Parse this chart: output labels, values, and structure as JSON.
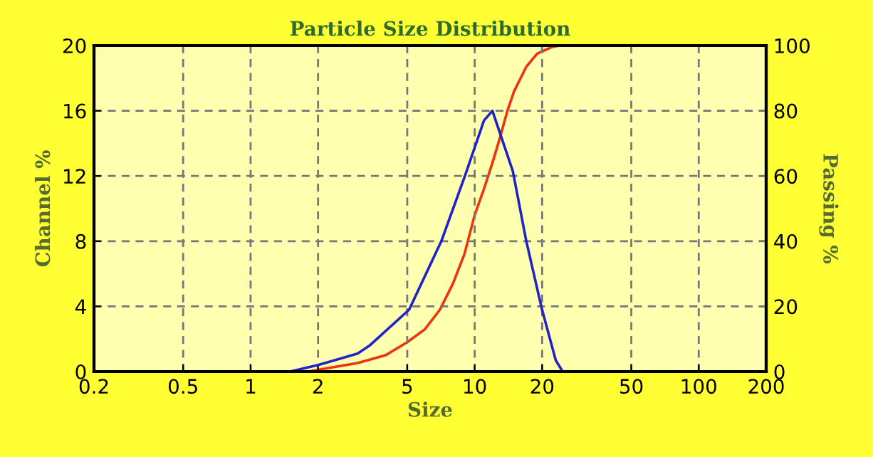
{
  "chart_data": {
    "type": "line",
    "title": "Particle Size Distribution",
    "xlabel": "Size",
    "ylabel": "Channel %",
    "y2label": "Passing %",
    "log": "x",
    "grid": true,
    "marker": "none",
    "line_style": "solid",
    "xlim": [
      0.2,
      200
    ],
    "xticks": [
      0.2,
      0.5,
      1,
      2,
      5,
      10,
      20,
      50,
      100,
      200
    ],
    "ylim": [
      0,
      20
    ],
    "yticks": [
      0,
      4,
      8,
      12,
      16,
      20
    ],
    "y2lim": [
      0,
      100
    ],
    "y2ticks": [
      0,
      20,
      40,
      60,
      80,
      100
    ],
    "series": [
      {
        "color": "#2222cc",
        "x": [
          0.2,
          1.5,
          2,
          3,
          3.4,
          5.1,
          7.1,
          9.1,
          11,
          12,
          14.8,
          17,
          19.9,
          23,
          24.7,
          200
        ],
        "values": [
          0,
          0,
          0.4,
          1.1,
          1.6,
          3.8,
          8,
          12.1,
          15.4,
          16,
          12.3,
          8,
          3.9,
          0.7,
          0,
          0
        ]
      },
      {
        "color": "#ee3311",
        "axis": "y2",
        "x": [
          0.2,
          1.8,
          3,
          4,
          5,
          6,
          7,
          8,
          9,
          10,
          11,
          12,
          13,
          14,
          15,
          17,
          19,
          22,
          24,
          200
        ],
        "values": [
          0,
          0,
          2.6,
          5,
          9,
          13,
          19,
          27,
          36,
          48,
          56,
          64,
          72,
          80,
          86,
          93.5,
          97.5,
          99.5,
          100,
          100
        ]
      }
    ]
  }
}
